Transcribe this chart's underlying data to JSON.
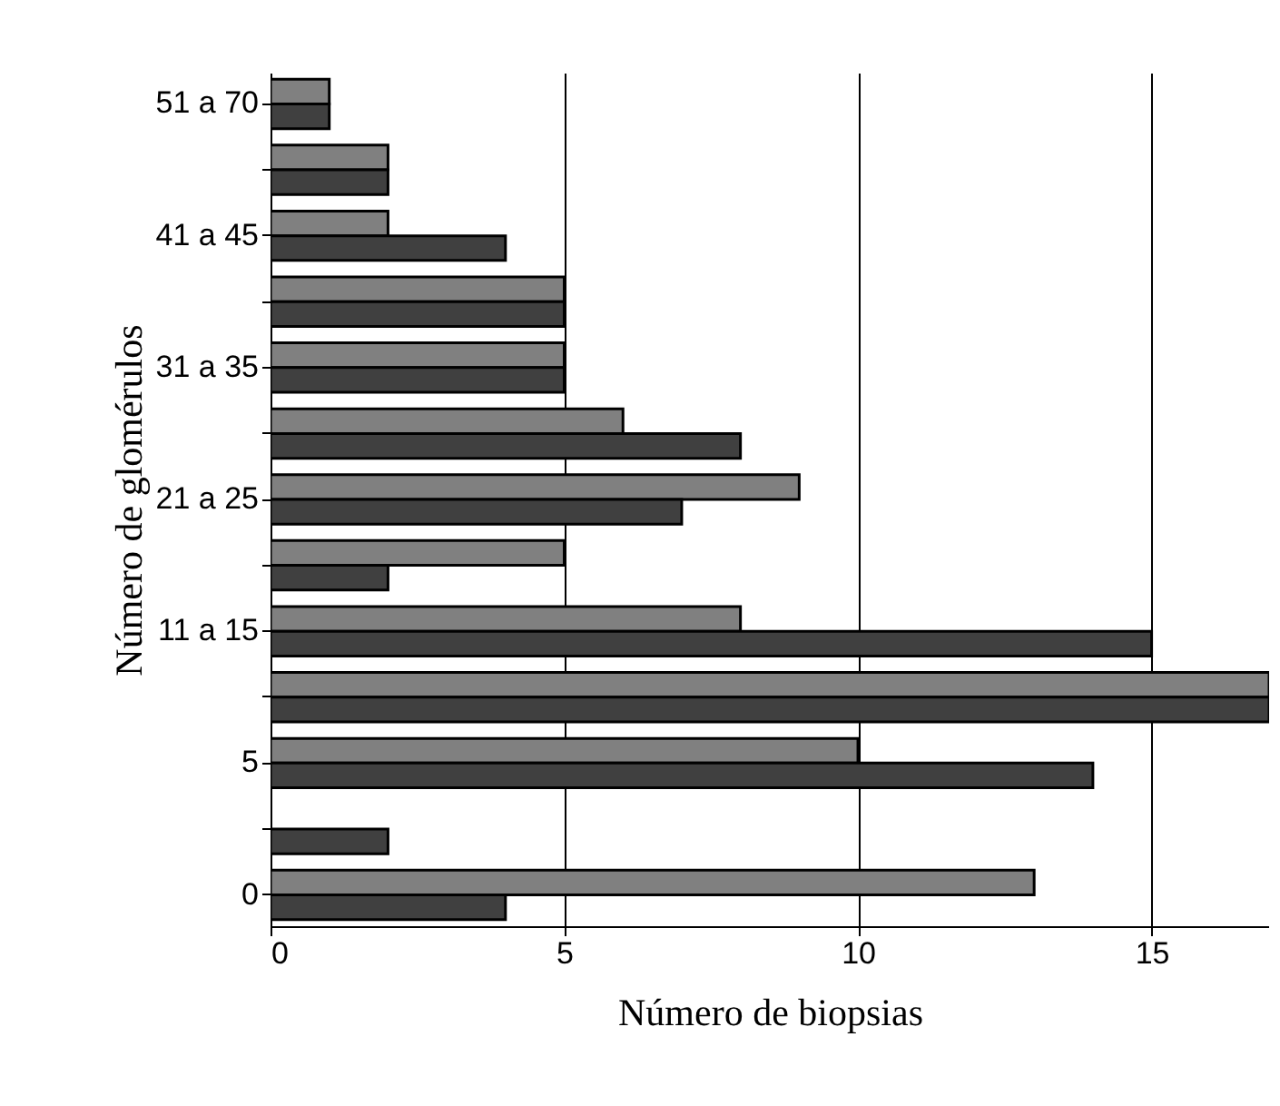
{
  "chart_data": {
    "type": "bar",
    "orientation": "horizontal",
    "xlabel": "Número de biopsias",
    "ylabel": "Número de glomérulos",
    "categories": [
      "51 a 70",
      null,
      "41 a 45",
      null,
      "31 a 35",
      null,
      "21 a 25",
      null,
      "11 a 15",
      null,
      "5",
      null,
      "0"
    ],
    "series": [
      {
        "color": "#808080",
        "values": [
          1,
          2,
          2,
          5,
          5,
          6,
          9,
          5,
          8,
          17,
          10,
          null,
          13
        ]
      },
      {
        "color": "#404040",
        "values": [
          1,
          2,
          4,
          5,
          5,
          8,
          7,
          2,
          15,
          17,
          14,
          2,
          4
        ]
      }
    ],
    "xlim": [
      0,
      17
    ],
    "xticks": [
      0,
      5,
      10,
      15
    ],
    "grid": "x"
  }
}
